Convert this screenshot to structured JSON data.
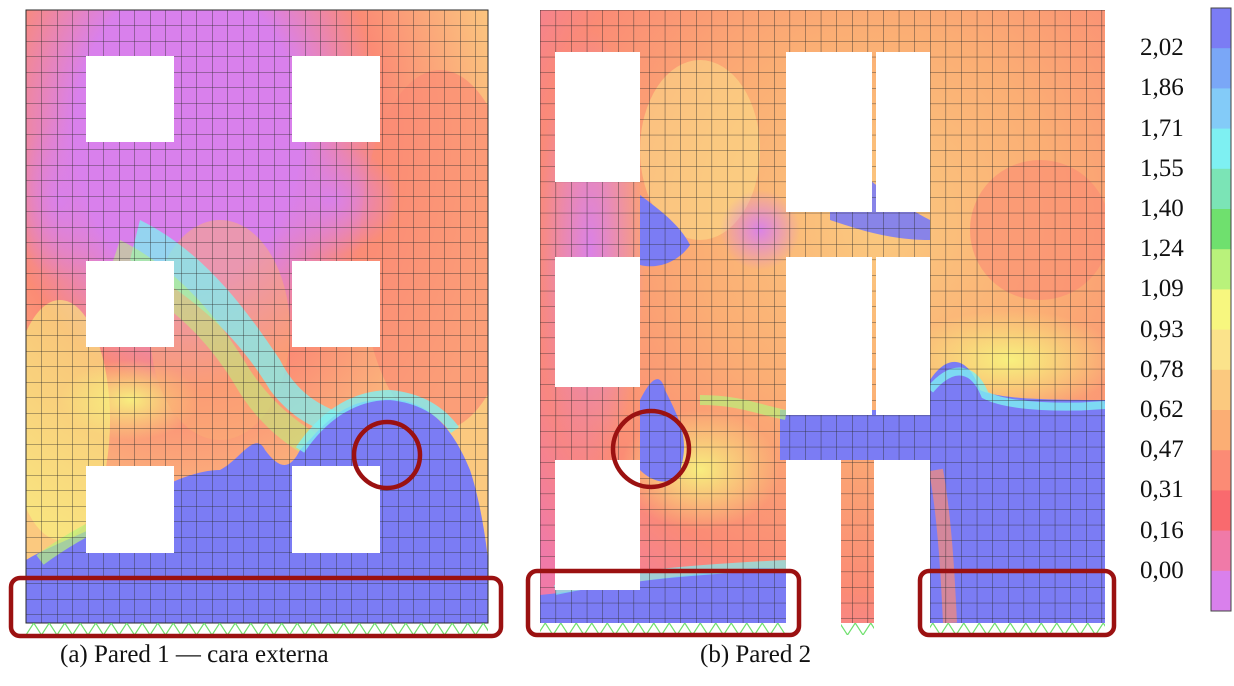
{
  "figure": {
    "caption_a": "(a) Pared 1 — cara externa",
    "caption_b": "(b) Pared 2"
  },
  "legend": {
    "labels": [
      "2,02",
      "1,86",
      "1,71",
      "1,55",
      "1,40",
      "1,24",
      "1,09",
      "0,93",
      "0,78",
      "0,62",
      "0,47",
      "0,31",
      "0,16",
      "0,00"
    ],
    "colors": [
      "#7b7cf4",
      "#7aa7f7",
      "#83cbf8",
      "#7ef0f2",
      "#7be4b6",
      "#6fe06e",
      "#b9f27b",
      "#f7f77f",
      "#fbe38b",
      "#fbc97f",
      "#fbae74",
      "#fb8b75",
      "#f96a6e",
      "#f07aa8",
      "#d980ec"
    ]
  },
  "colors": {
    "highlight": "#9b1111",
    "mesh": "#2a2a2a",
    "support": "#6fe06e"
  }
}
